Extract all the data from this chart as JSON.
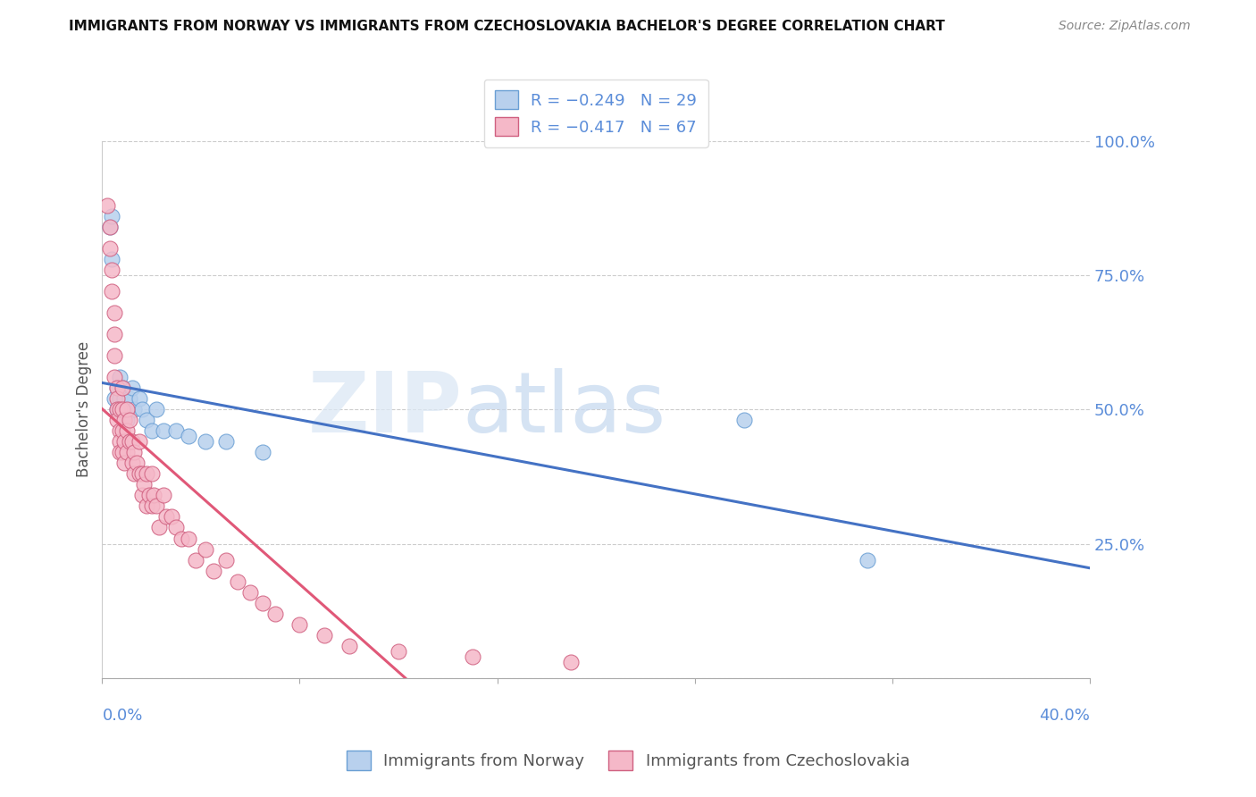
{
  "title": "IMMIGRANTS FROM NORWAY VS IMMIGRANTS FROM CZECHOSLOVAKIA BACHELOR'S DEGREE CORRELATION CHART",
  "source": "Source: ZipAtlas.com",
  "ylabel": "Bachelor's Degree",
  "norway_color": "#b8d0ed",
  "norway_edge_color": "#6a9fd4",
  "czechoslovakia_color": "#f5b8c8",
  "czechoslovakia_edge_color": "#d06080",
  "norway_line_color": "#4472c4",
  "czechoslovakia_line_color": "#e05878",
  "legend_1_prefix": "R = ",
  "legend_1_r": "-0.249",
  "legend_1_n": "N = 29",
  "legend_2_prefix": "R = ",
  "legend_2_r": "-0.417",
  "legend_2_n": "N = 67",
  "legend_series_1": "Immigrants from Norway",
  "legend_series_2": "Immigrants from Czechoslovakia",
  "xlim": [
    0.0,
    0.4
  ],
  "ylim": [
    0.0,
    1.0
  ],
  "x_ticks": [
    0.0,
    0.08,
    0.16,
    0.24,
    0.32,
    0.4
  ],
  "y_ticks_right": [
    0.0,
    0.25,
    0.5,
    0.75,
    1.0
  ],
  "y_tick_labels_right": [
    "",
    "25.0%",
    "50.0%",
    "75.0%",
    "100.0%"
  ],
  "x_tick_label_left": "0.0%",
  "x_tick_label_right": "40.0%",
  "axis_label_color": "#5b8dd9",
  "grid_color": "#cccccc",
  "watermark_zip": "ZIP",
  "watermark_atlas": "atlas",
  "norway_x": [
    0.003,
    0.004,
    0.004,
    0.005,
    0.006,
    0.006,
    0.007,
    0.007,
    0.008,
    0.008,
    0.009,
    0.01,
    0.01,
    0.011,
    0.012,
    0.013,
    0.015,
    0.016,
    0.018,
    0.02,
    0.022,
    0.025,
    0.03,
    0.035,
    0.042,
    0.05,
    0.065,
    0.26,
    0.31
  ],
  "norway_y": [
    0.84,
    0.78,
    0.86,
    0.52,
    0.54,
    0.5,
    0.56,
    0.52,
    0.54,
    0.5,
    0.52,
    0.5,
    0.48,
    0.52,
    0.54,
    0.5,
    0.52,
    0.5,
    0.48,
    0.46,
    0.5,
    0.46,
    0.46,
    0.45,
    0.44,
    0.44,
    0.42,
    0.48,
    0.22
  ],
  "czechoslovakia_x": [
    0.002,
    0.003,
    0.003,
    0.004,
    0.004,
    0.005,
    0.005,
    0.005,
    0.005,
    0.006,
    0.006,
    0.006,
    0.006,
    0.007,
    0.007,
    0.007,
    0.007,
    0.008,
    0.008,
    0.008,
    0.008,
    0.009,
    0.009,
    0.009,
    0.01,
    0.01,
    0.01,
    0.011,
    0.011,
    0.012,
    0.012,
    0.013,
    0.013,
    0.014,
    0.015,
    0.015,
    0.016,
    0.016,
    0.017,
    0.018,
    0.018,
    0.019,
    0.02,
    0.02,
    0.021,
    0.022,
    0.023,
    0.025,
    0.026,
    0.028,
    0.03,
    0.032,
    0.035,
    0.038,
    0.042,
    0.045,
    0.05,
    0.055,
    0.06,
    0.065,
    0.07,
    0.08,
    0.09,
    0.1,
    0.12,
    0.15,
    0.19
  ],
  "czechoslovakia_y": [
    0.88,
    0.84,
    0.8,
    0.76,
    0.72,
    0.68,
    0.64,
    0.6,
    0.56,
    0.54,
    0.52,
    0.5,
    0.48,
    0.5,
    0.46,
    0.44,
    0.42,
    0.54,
    0.5,
    0.46,
    0.42,
    0.48,
    0.44,
    0.4,
    0.5,
    0.46,
    0.42,
    0.48,
    0.44,
    0.44,
    0.4,
    0.42,
    0.38,
    0.4,
    0.44,
    0.38,
    0.38,
    0.34,
    0.36,
    0.38,
    0.32,
    0.34,
    0.38,
    0.32,
    0.34,
    0.32,
    0.28,
    0.34,
    0.3,
    0.3,
    0.28,
    0.26,
    0.26,
    0.22,
    0.24,
    0.2,
    0.22,
    0.18,
    0.16,
    0.14,
    0.12,
    0.1,
    0.08,
    0.06,
    0.05,
    0.04,
    0.03
  ]
}
